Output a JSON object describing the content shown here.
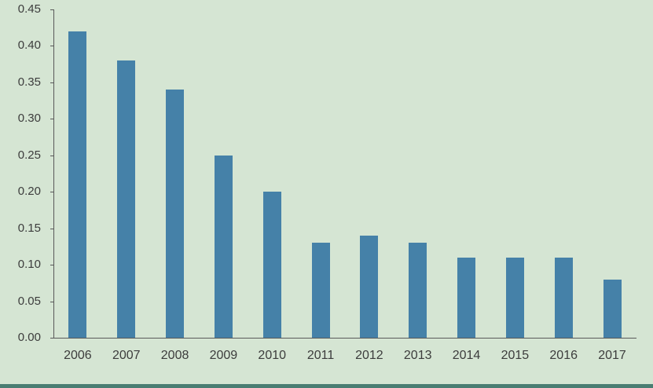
{
  "chart_data": {
    "type": "bar",
    "title": "",
    "xlabel": "",
    "ylabel": "",
    "categories": [
      "2006",
      "2007",
      "2008",
      "2009",
      "2010",
      "2011",
      "2012",
      "2013",
      "2014",
      "2015",
      "2016",
      "2017"
    ],
    "values": [
      0.42,
      0.38,
      0.34,
      0.25,
      0.2,
      0.13,
      0.14,
      0.13,
      0.11,
      0.11,
      0.11,
      0.08
    ],
    "ylim": [
      0,
      0.45
    ],
    "y_ticks": [
      0.0,
      0.05,
      0.1,
      0.15,
      0.2,
      0.25,
      0.3,
      0.35,
      0.4,
      0.45
    ],
    "y_tick_labels": [
      "0.00",
      "0.05",
      "0.10",
      "0.15",
      "0.20",
      "0.25",
      "0.30",
      "0.35",
      "0.40",
      "0.45"
    ],
    "grid": false,
    "legend": false,
    "layout": {
      "legend_position": "none"
    },
    "colors": {
      "bar": "#4581a8",
      "background": "#d5e5d3",
      "axis": "#595959",
      "text": "#3c3c3c",
      "bottom_edge": "#4a7d72"
    }
  }
}
